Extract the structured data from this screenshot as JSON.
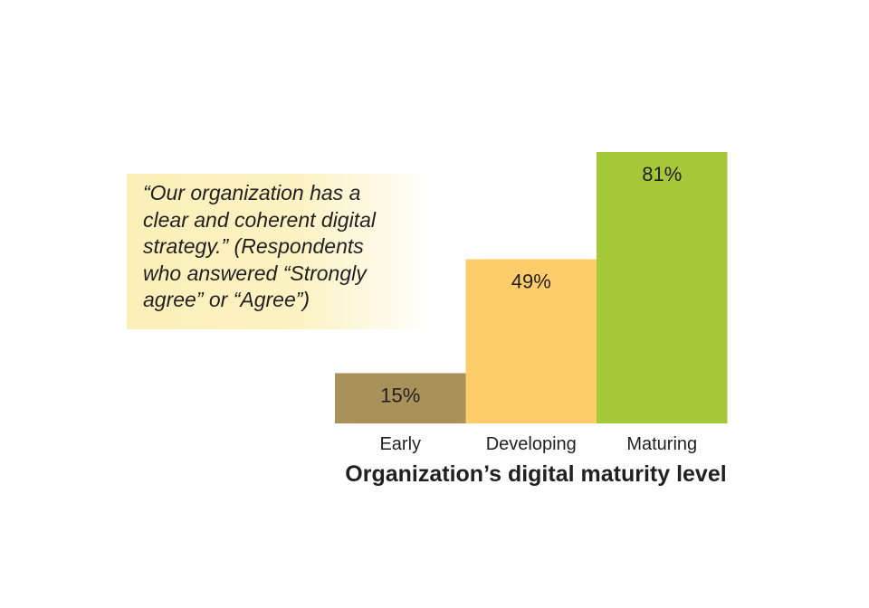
{
  "annotation": {
    "text": "“Our organization has a\nclear and coherent digital\nstrategy.” (Respondents\nwho answered “Strongly\nagree” or “Agree”)"
  },
  "chart_data": {
    "type": "bar",
    "categories": [
      "Early",
      "Developing",
      "Maturing"
    ],
    "values": [
      15,
      49,
      81
    ],
    "value_labels": [
      "15%",
      "49%",
      "81%"
    ],
    "colors": [
      "#a8925a",
      "#fdcd6b",
      "#a5c838"
    ],
    "xlabel": "Organization’s digital maturity level",
    "ylabel": "",
    "ylim": [
      0,
      81
    ],
    "grid": false,
    "legend": "none"
  }
}
